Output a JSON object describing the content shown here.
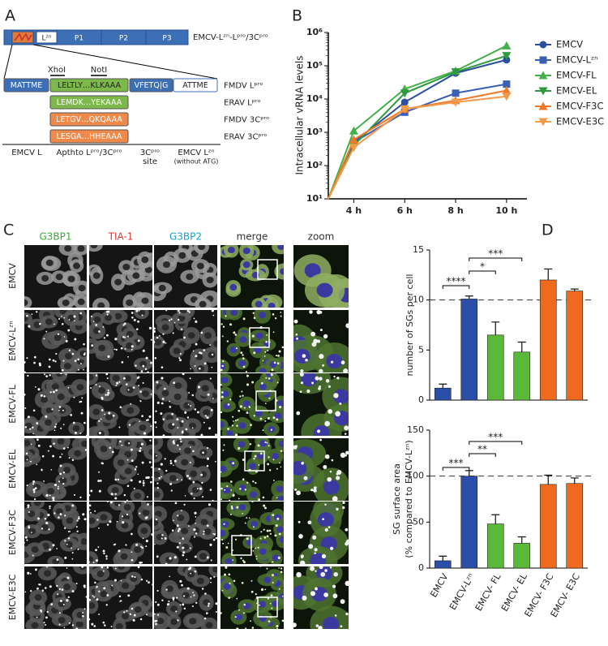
{
  "panels": [
    "A",
    "B",
    "C",
    "D"
  ],
  "diagram": {
    "genome": {
      "segments": [
        "Lᶻⁿ",
        "P1",
        "P2",
        "P3"
      ],
      "label": "EMCV-Lᶻⁿ-Lᵖʳᵒ/3Cᵖʳᵒ"
    },
    "sites": [
      "XhoI",
      "NotI"
    ],
    "rows": [
      {
        "cells": [
          "MATTME",
          "LELTLY…KLKAAA",
          "VFETQ|G",
          "ATTME"
        ],
        "label": "FMDV Lᵖʳᵒ"
      },
      {
        "cells": [
          "LEMDK…YEKAAA"
        ],
        "label": "ERAV Lᵖʳᵒ"
      },
      {
        "cells": [
          "LETGV…QKQAAA"
        ],
        "label": "FMDV 3Cᵖʳᵒ"
      },
      {
        "cells": [
          "LESGA…HHEAAA"
        ],
        "label": "ERAV 3Cᵖʳᵒ"
      }
    ],
    "regions": [
      "EMCV L",
      "Apthto Lᵖʳᵒ/3Cᵖʳᵒ",
      "3Cᵖʳᵒ",
      "site",
      "EMCV Lᶻⁿ",
      "(without ATG)"
    ]
  },
  "microscopy": {
    "columns": [
      {
        "text": "G3BP1",
        "color": "#3aa83a"
      },
      {
        "text": "TIA-1",
        "color": "#e03030"
      },
      {
        "text": "G3BP2",
        "color": "#1aa0c8"
      },
      {
        "text": "merge",
        "color": "#333333"
      },
      {
        "text": "zoom",
        "color": "#333333"
      }
    ],
    "rows": [
      "EMCV",
      "EMCV-Lᶻⁿ",
      "EMCV-FL",
      "EMCV-EL",
      "EMCV-F3C",
      "EMCV-E3C"
    ]
  },
  "chart_data": [
    {
      "type": "line",
      "y_label": "Intracellular vRNA levels",
      "log_y": true,
      "x": [
        3,
        4,
        6,
        8,
        10
      ],
      "xlim": [
        3,
        10.8
      ],
      "xticks": [
        {
          "value": 4,
          "label": "4 h"
        },
        {
          "value": 6,
          "label": "6 h"
        },
        {
          "value": 8,
          "label": "8 h"
        },
        {
          "value": 10,
          "label": "10 h"
        }
      ],
      "ylim": [
        10,
        1000000
      ],
      "yticks": [
        {
          "value": 10,
          "label": "10¹"
        },
        {
          "value": 100,
          "label": "10²"
        },
        {
          "value": 1000,
          "label": "10³"
        },
        {
          "value": 10000,
          "label": "10⁴"
        },
        {
          "value": 100000,
          "label": "10⁵"
        },
        {
          "value": 1000000,
          "label": "10⁶"
        }
      ],
      "legend": "right",
      "series": [
        {
          "name": "EMCV",
          "color": "#2b4f9e",
          "marker": "circle",
          "values": [
            10,
            500,
            8000,
            60000,
            150000
          ]
        },
        {
          "name": "EMCV-Lᶻⁿ",
          "color": "#3a5fb5",
          "marker": "square",
          "values": [
            10,
            500,
            4000,
            15000,
            28000
          ]
        },
        {
          "name": "EMCV-FL",
          "color": "#44b04a",
          "marker": "triangle-up",
          "values": [
            10,
            1100,
            20000,
            70000,
            400000
          ]
        },
        {
          "name": "EMCV-EL",
          "color": "#2e9a3e",
          "marker": "triangle-down",
          "values": [
            10,
            400,
            15000,
            65000,
            200000
          ]
        },
        {
          "name": "EMCV-F3C",
          "color": "#f07a2a",
          "marker": "triangle-up",
          "values": [
            10,
            600,
            5000,
            9000,
            18000
          ]
        },
        {
          "name": "EMCV-E3C",
          "color": "#f39a4a",
          "marker": "triangle-down",
          "values": [
            10,
            350,
            5000,
            8000,
            12000
          ]
        }
      ]
    },
    {
      "type": "bar",
      "y_label": [
        "number of SGs per cell"
      ],
      "values": [
        1.2,
        10.1,
        6.5,
        4.8,
        12,
        10.9
      ],
      "errors": [
        0.4,
        0.3,
        1.3,
        1.0,
        1.1,
        0.2
      ],
      "colors": [
        "#2b4fa8",
        "#2b4fa8",
        "#5cb83a",
        "#5cb83a",
        "#f06a1e",
        "#f06a1e"
      ],
      "ylim": [
        0,
        15
      ],
      "yticks": [
        0,
        5,
        10,
        15
      ],
      "reference_line": 10,
      "annotations": [
        "****",
        "*",
        "***"
      ]
    },
    {
      "type": "bar",
      "y_label": [
        "SG surface area",
        "(% compared to EMCV-Lᶻⁿ)"
      ],
      "categories": [
        "EMCV",
        "EMCV-Lᶻⁿ",
        "EMCV- FL",
        "EMCV- EL",
        "EMCV- F3C",
        "EMCV- E3C"
      ],
      "values": [
        8,
        100,
        48,
        27,
        91,
        92
      ],
      "errors": [
        5,
        6,
        10,
        7,
        10,
        6
      ],
      "colors": [
        "#2b4fa8",
        "#2b4fa8",
        "#5cb83a",
        "#5cb83a",
        "#f06a1e",
        "#f06a1e"
      ],
      "ylim": [
        0,
        150
      ],
      "yticks": [
        0,
        50,
        100,
        150
      ],
      "reference_line": 100,
      "annotations": [
        "***",
        "**",
        "***"
      ]
    }
  ]
}
